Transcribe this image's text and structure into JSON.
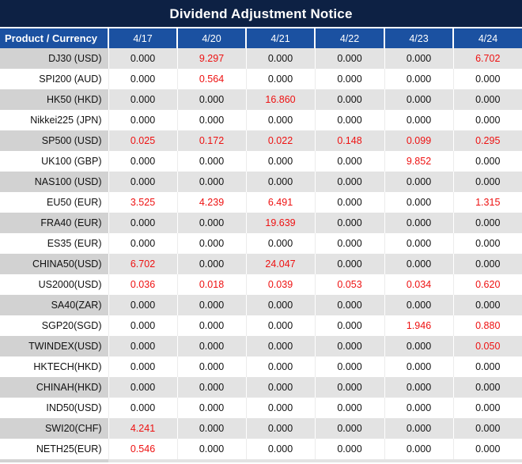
{
  "title": "Dividend Adjustment Notice",
  "table": {
    "header": {
      "product_column": "Product / Currency",
      "date_columns": [
        "4/17",
        "4/20",
        "4/21",
        "4/22",
        "4/23",
        "4/24"
      ]
    },
    "rows": [
      {
        "product": "DJ30 (USD)",
        "values": [
          "0.000",
          "9.297",
          "0.000",
          "0.000",
          "0.000",
          "6.702"
        ]
      },
      {
        "product": "SPI200 (AUD)",
        "values": [
          "0.000",
          "0.564",
          "0.000",
          "0.000",
          "0.000",
          "0.000"
        ]
      },
      {
        "product": "HK50 (HKD)",
        "values": [
          "0.000",
          "0.000",
          "16.860",
          "0.000",
          "0.000",
          "0.000"
        ]
      },
      {
        "product": "Nikkei225 (JPN)",
        "values": [
          "0.000",
          "0.000",
          "0.000",
          "0.000",
          "0.000",
          "0.000"
        ]
      },
      {
        "product": "SP500 (USD)",
        "values": [
          "0.025",
          "0.172",
          "0.022",
          "0.148",
          "0.099",
          "0.295"
        ]
      },
      {
        "product": "UK100 (GBP)",
        "values": [
          "0.000",
          "0.000",
          "0.000",
          "0.000",
          "9.852",
          "0.000"
        ]
      },
      {
        "product": "NAS100 (USD)",
        "values": [
          "0.000",
          "0.000",
          "0.000",
          "0.000",
          "0.000",
          "0.000"
        ]
      },
      {
        "product": "EU50 (EUR)",
        "values": [
          "3.525",
          "4.239",
          "6.491",
          "0.000",
          "0.000",
          "1.315"
        ]
      },
      {
        "product": "FRA40 (EUR)",
        "values": [
          "0.000",
          "0.000",
          "19.639",
          "0.000",
          "0.000",
          "0.000"
        ]
      },
      {
        "product": "ES35 (EUR)",
        "values": [
          "0.000",
          "0.000",
          "0.000",
          "0.000",
          "0.000",
          "0.000"
        ]
      },
      {
        "product": "CHINA50(USD)",
        "values": [
          "6.702",
          "0.000",
          "24.047",
          "0.000",
          "0.000",
          "0.000"
        ]
      },
      {
        "product": "US2000(USD)",
        "values": [
          "0.036",
          "0.018",
          "0.039",
          "0.053",
          "0.034",
          "0.620"
        ]
      },
      {
        "product": "SA40(ZAR)",
        "values": [
          "0.000",
          "0.000",
          "0.000",
          "0.000",
          "0.000",
          "0.000"
        ]
      },
      {
        "product": "SGP20(SGD)",
        "values": [
          "0.000",
          "0.000",
          "0.000",
          "0.000",
          "1.946",
          "0.880"
        ]
      },
      {
        "product": "TWINDEX(USD)",
        "values": [
          "0.000",
          "0.000",
          "0.000",
          "0.000",
          "0.000",
          "0.050"
        ]
      },
      {
        "product": "HKTECH(HKD)",
        "values": [
          "0.000",
          "0.000",
          "0.000",
          "0.000",
          "0.000",
          "0.000"
        ]
      },
      {
        "product": "CHINAH(HKD)",
        "values": [
          "0.000",
          "0.000",
          "0.000",
          "0.000",
          "0.000",
          "0.000"
        ]
      },
      {
        "product": "IND50(USD)",
        "values": [
          "0.000",
          "0.000",
          "0.000",
          "0.000",
          "0.000",
          "0.000"
        ]
      },
      {
        "product": "SWI20(CHF)",
        "values": [
          "4.241",
          "0.000",
          "0.000",
          "0.000",
          "0.000",
          "0.000"
        ]
      },
      {
        "product": "NETH25(EUR)",
        "values": [
          "0.546",
          "0.000",
          "0.000",
          "0.000",
          "0.000",
          "0.000"
        ]
      }
    ],
    "value_style_rule": "non-zero values rendered in red, zeros in black"
  },
  "colors": {
    "title_bg": "#0d2144",
    "header_bg": "#1b51a1",
    "row_gray": "#e3e3e3",
    "product_gray": "#d2d2d2",
    "value_red": "#ee1111",
    "text_black": "#111111"
  }
}
